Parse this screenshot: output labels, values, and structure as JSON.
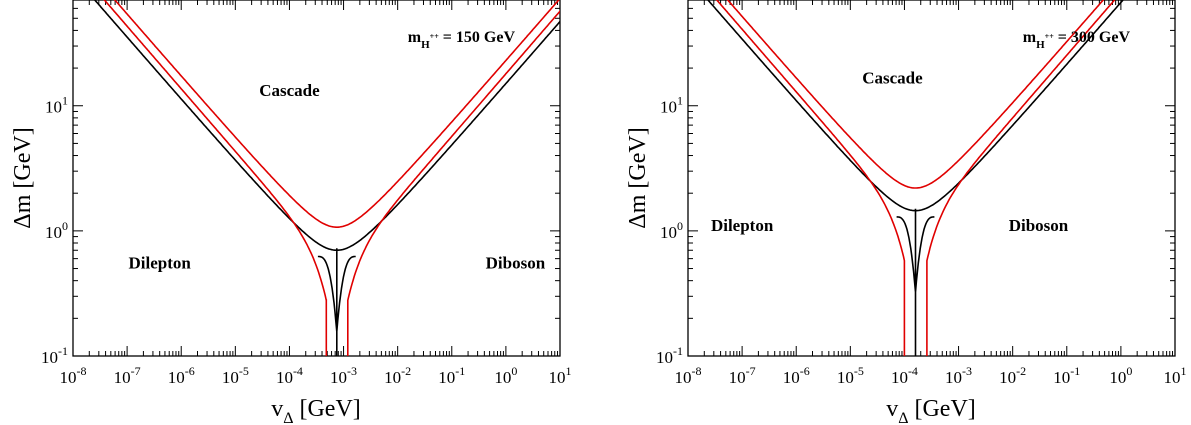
{
  "chart_data": [
    {
      "type": "line",
      "annotation": {
        "main": "m",
        "sub": "H",
        "sup": "++",
        "rest": " = 150 GeV"
      },
      "xlabel": {
        "main": "v",
        "sub": "Δ",
        "rest": " [GeV]"
      },
      "ylabel": "Δm [GeV]",
      "x_scale": "log",
      "y_scale": "log",
      "xlim": [
        1e-08,
        10
      ],
      "ylim": [
        0.1,
        70
      ],
      "x_tick_labels": [
        {
          "exp": -8,
          "text": "10",
          "sup": "-8"
        },
        {
          "exp": -7,
          "text": "10",
          "sup": "-7"
        },
        {
          "exp": -6,
          "text": "10",
          "sup": "-6"
        },
        {
          "exp": -5,
          "text": "10",
          "sup": "-5"
        },
        {
          "exp": -4,
          "text": "10",
          "sup": "-4"
        },
        {
          "exp": -3,
          "text": "10",
          "sup": "-3"
        },
        {
          "exp": -2,
          "text": "10",
          "sup": "-2"
        },
        {
          "exp": -1,
          "text": "10",
          "sup": "-1"
        },
        {
          "exp": 0,
          "text": "10",
          "sup": "0"
        },
        {
          "exp": 1,
          "text": "10",
          "sup": "1"
        }
      ],
      "y_tick_labels": [
        {
          "exp": -1,
          "text": "10",
          "sup": "-1"
        },
        {
          "exp": 0,
          "text": "10",
          "sup": "0"
        },
        {
          "exp": 1,
          "text": "10",
          "sup": "1"
        }
      ],
      "regions": [
        {
          "label": "Cascade",
          "x": 0.0001,
          "y": 12
        },
        {
          "label": "Dilepton",
          "x": 4e-07,
          "y": 0.5
        },
        {
          "label": "Diboson",
          "x": 1.5,
          "y": 0.5
        }
      ],
      "series": [
        {
          "color": "#000000",
          "vertex": [
            0.00075,
            0.7
          ],
          "kind": "center"
        },
        {
          "color": "#e00000",
          "vertex": [
            0.00075,
            1.07
          ],
          "gap_x": [
            0.00048,
            0.0012
          ],
          "kind": "upper"
        },
        {
          "color": "#e00000",
          "vertex": [
            0.00075,
            0.7
          ],
          "gap_x": [
            0.00048,
            0.0012
          ],
          "kind": "lower"
        }
      ]
    },
    {
      "type": "line",
      "annotation": {
        "main": "m",
        "sub": "H",
        "sup": "++",
        "rest": " = 300 GeV"
      },
      "xlabel": {
        "main": "v",
        "sub": "Δ",
        "rest": " [GeV]"
      },
      "ylabel": "Δm [GeV]",
      "x_scale": "log",
      "y_scale": "log",
      "xlim": [
        1e-08,
        10
      ],
      "ylim": [
        0.1,
        70
      ],
      "x_tick_labels": [
        {
          "exp": -8,
          "text": "10",
          "sup": "-8"
        },
        {
          "exp": -7,
          "text": "10",
          "sup": "-7"
        },
        {
          "exp": -6,
          "text": "10",
          "sup": "-6"
        },
        {
          "exp": -5,
          "text": "10",
          "sup": "-5"
        },
        {
          "exp": -4,
          "text": "10",
          "sup": "-4"
        },
        {
          "exp": -3,
          "text": "10",
          "sup": "-3"
        },
        {
          "exp": -2,
          "text": "10",
          "sup": "-2"
        },
        {
          "exp": -1,
          "text": "10",
          "sup": "-1"
        },
        {
          "exp": 0,
          "text": "10",
          "sup": "0"
        },
        {
          "exp": 1,
          "text": "10",
          "sup": "1"
        }
      ],
      "y_tick_labels": [
        {
          "exp": -1,
          "text": "10",
          "sup": "-1"
        },
        {
          "exp": 0,
          "text": "10",
          "sup": "0"
        },
        {
          "exp": 1,
          "text": "10",
          "sup": "1"
        }
      ],
      "regions": [
        {
          "label": "Cascade",
          "x": 6e-05,
          "y": 15
        },
        {
          "label": "Dilepton",
          "x": 1e-07,
          "y": 1.0
        },
        {
          "label": "Diboson",
          "x": 0.03,
          "y": 1.0
        }
      ],
      "series": [
        {
          "color": "#000000",
          "vertex": [
            0.00016,
            1.45
          ],
          "kind": "center"
        },
        {
          "color": "#e00000",
          "vertex": [
            0.00016,
            2.2
          ],
          "gap_x": [
            0.0001,
            0.00026
          ],
          "kind": "upper"
        },
        {
          "color": "#e00000",
          "vertex": [
            0.00016,
            1.45
          ],
          "gap_x": [
            0.0001,
            0.00026
          ],
          "kind": "lower"
        }
      ]
    }
  ]
}
